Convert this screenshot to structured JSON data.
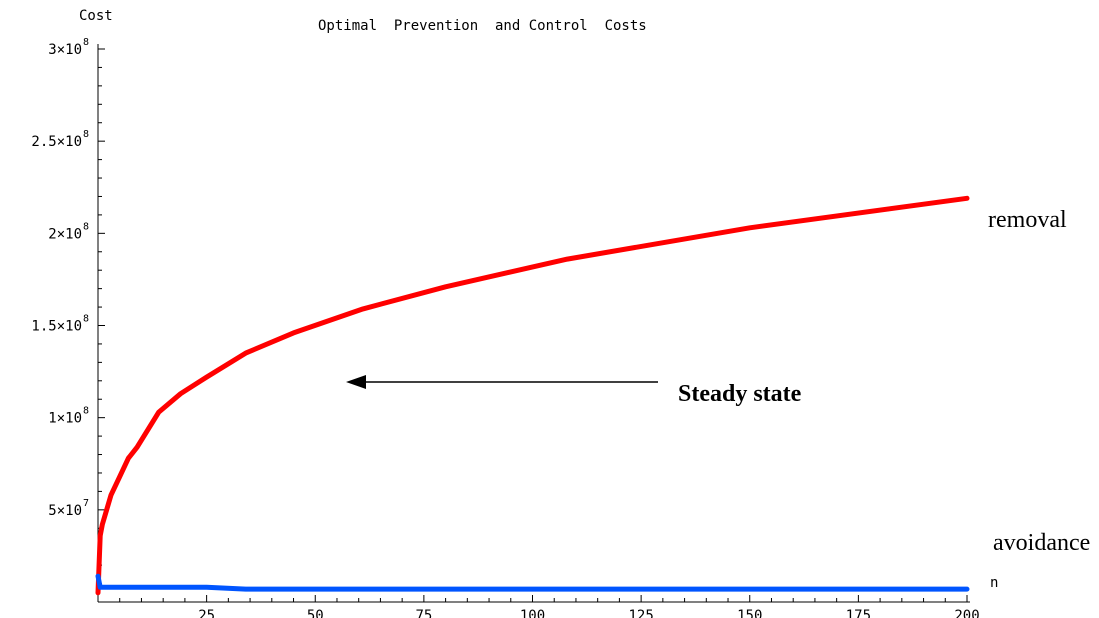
{
  "chart_data": {
    "type": "line",
    "title": "Optimal  Prevention  and Control  Costs",
    "xlabel": "n",
    "ylabel": "Cost",
    "xlim": [
      0,
      200
    ],
    "ylim": [
      0,
      300000000
    ],
    "x_ticks": [
      {
        "value": 25,
        "label": "25"
      },
      {
        "value": 50,
        "label": "50"
      },
      {
        "value": 75,
        "label": "75"
      },
      {
        "value": 100,
        "label": "100"
      },
      {
        "value": 125,
        "label": "125"
      },
      {
        "value": 150,
        "label": "150"
      },
      {
        "value": 175,
        "label": "175"
      },
      {
        "value": 200,
        "label": "200"
      }
    ],
    "y_ticks": [
      {
        "value": 50000000,
        "mantissa": "5",
        "exponent": "7"
      },
      {
        "value": 100000000,
        "mantissa": "1",
        "exponent": "8"
      },
      {
        "value": 150000000,
        "mantissa": "1.5",
        "exponent": "8"
      },
      {
        "value": 200000000,
        "mantissa": "2",
        "exponent": "8"
      },
      {
        "value": 250000000,
        "mantissa": "2.5",
        "exponent": "8"
      },
      {
        "value": 300000000,
        "mantissa": "3",
        "exponent": "8"
      }
    ],
    "series": [
      {
        "name": "removal",
        "color": "#ff0000",
        "x": [
          0,
          0.5,
          1,
          3,
          5,
          7,
          9,
          14,
          19,
          25,
          34,
          45,
          61,
          80,
          108,
          150,
          200
        ],
        "y": [
          5000000,
          36000000,
          42000000,
          58000000,
          68000000,
          78000000,
          84000000,
          103000000,
          113000000,
          122000000,
          135000000,
          146000000,
          159000000,
          171000000,
          186000000,
          203000000,
          219000000
        ]
      },
      {
        "name": "avoidance",
        "color": "#0055ff",
        "x": [
          0,
          0.5,
          1,
          5,
          10,
          25,
          34,
          50,
          100,
          150,
          200
        ],
        "y": [
          14000000,
          8000000,
          8000000,
          8000000,
          8000000,
          8000000,
          7000000,
          7000000,
          7000000,
          7000000,
          7000000
        ]
      }
    ],
    "annotations": [
      {
        "text": "Steady state",
        "arrow": true
      }
    ],
    "grid": false
  }
}
